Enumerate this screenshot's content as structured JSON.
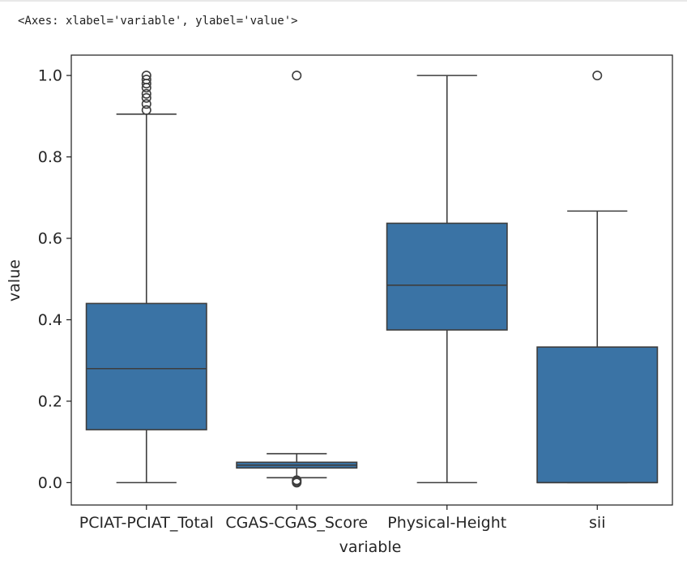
{
  "output": {
    "repr": "<Axes: xlabel='variable', ylabel='value'>"
  },
  "chart_data": {
    "type": "box",
    "xlabel": "variable",
    "ylabel": "value",
    "ylim": [
      -0.055,
      1.05
    ],
    "yticks": [
      "0.0",
      "0.2",
      "0.4",
      "0.6",
      "0.8",
      "1.0"
    ],
    "grid": false,
    "box_color": "#3a73a5",
    "line_color": "#3d3d3d",
    "categories": [
      "PCIAT-PCIAT_Total",
      "CGAS-CGAS_Score",
      "Physical-Height",
      "sii"
    ],
    "boxes": [
      {
        "category": "PCIAT-PCIAT_Total",
        "whisker_low": 0.0,
        "q1": 0.13,
        "median": 0.28,
        "q3": 0.44,
        "whisker_high": 0.905,
        "outliers": [
          0.915,
          0.93,
          0.945,
          0.955,
          0.97,
          0.98,
          0.99,
          1.0
        ]
      },
      {
        "category": "CGAS-CGAS_Score",
        "whisker_low": 0.012,
        "q1": 0.036,
        "median": 0.043,
        "q3": 0.05,
        "whisker_high": 0.071,
        "outliers": [
          0.0,
          0.003,
          0.006,
          1.0
        ]
      },
      {
        "category": "Physical-Height",
        "whisker_low": 0.0,
        "q1": 0.375,
        "median": 0.485,
        "q3": 0.637,
        "whisker_high": 1.0,
        "outliers": []
      },
      {
        "category": "sii",
        "whisker_low": 0.0,
        "q1": 0.0,
        "median": 0.0,
        "q3": 0.333,
        "whisker_high": 0.667,
        "outliers": [
          1.0
        ]
      }
    ]
  }
}
